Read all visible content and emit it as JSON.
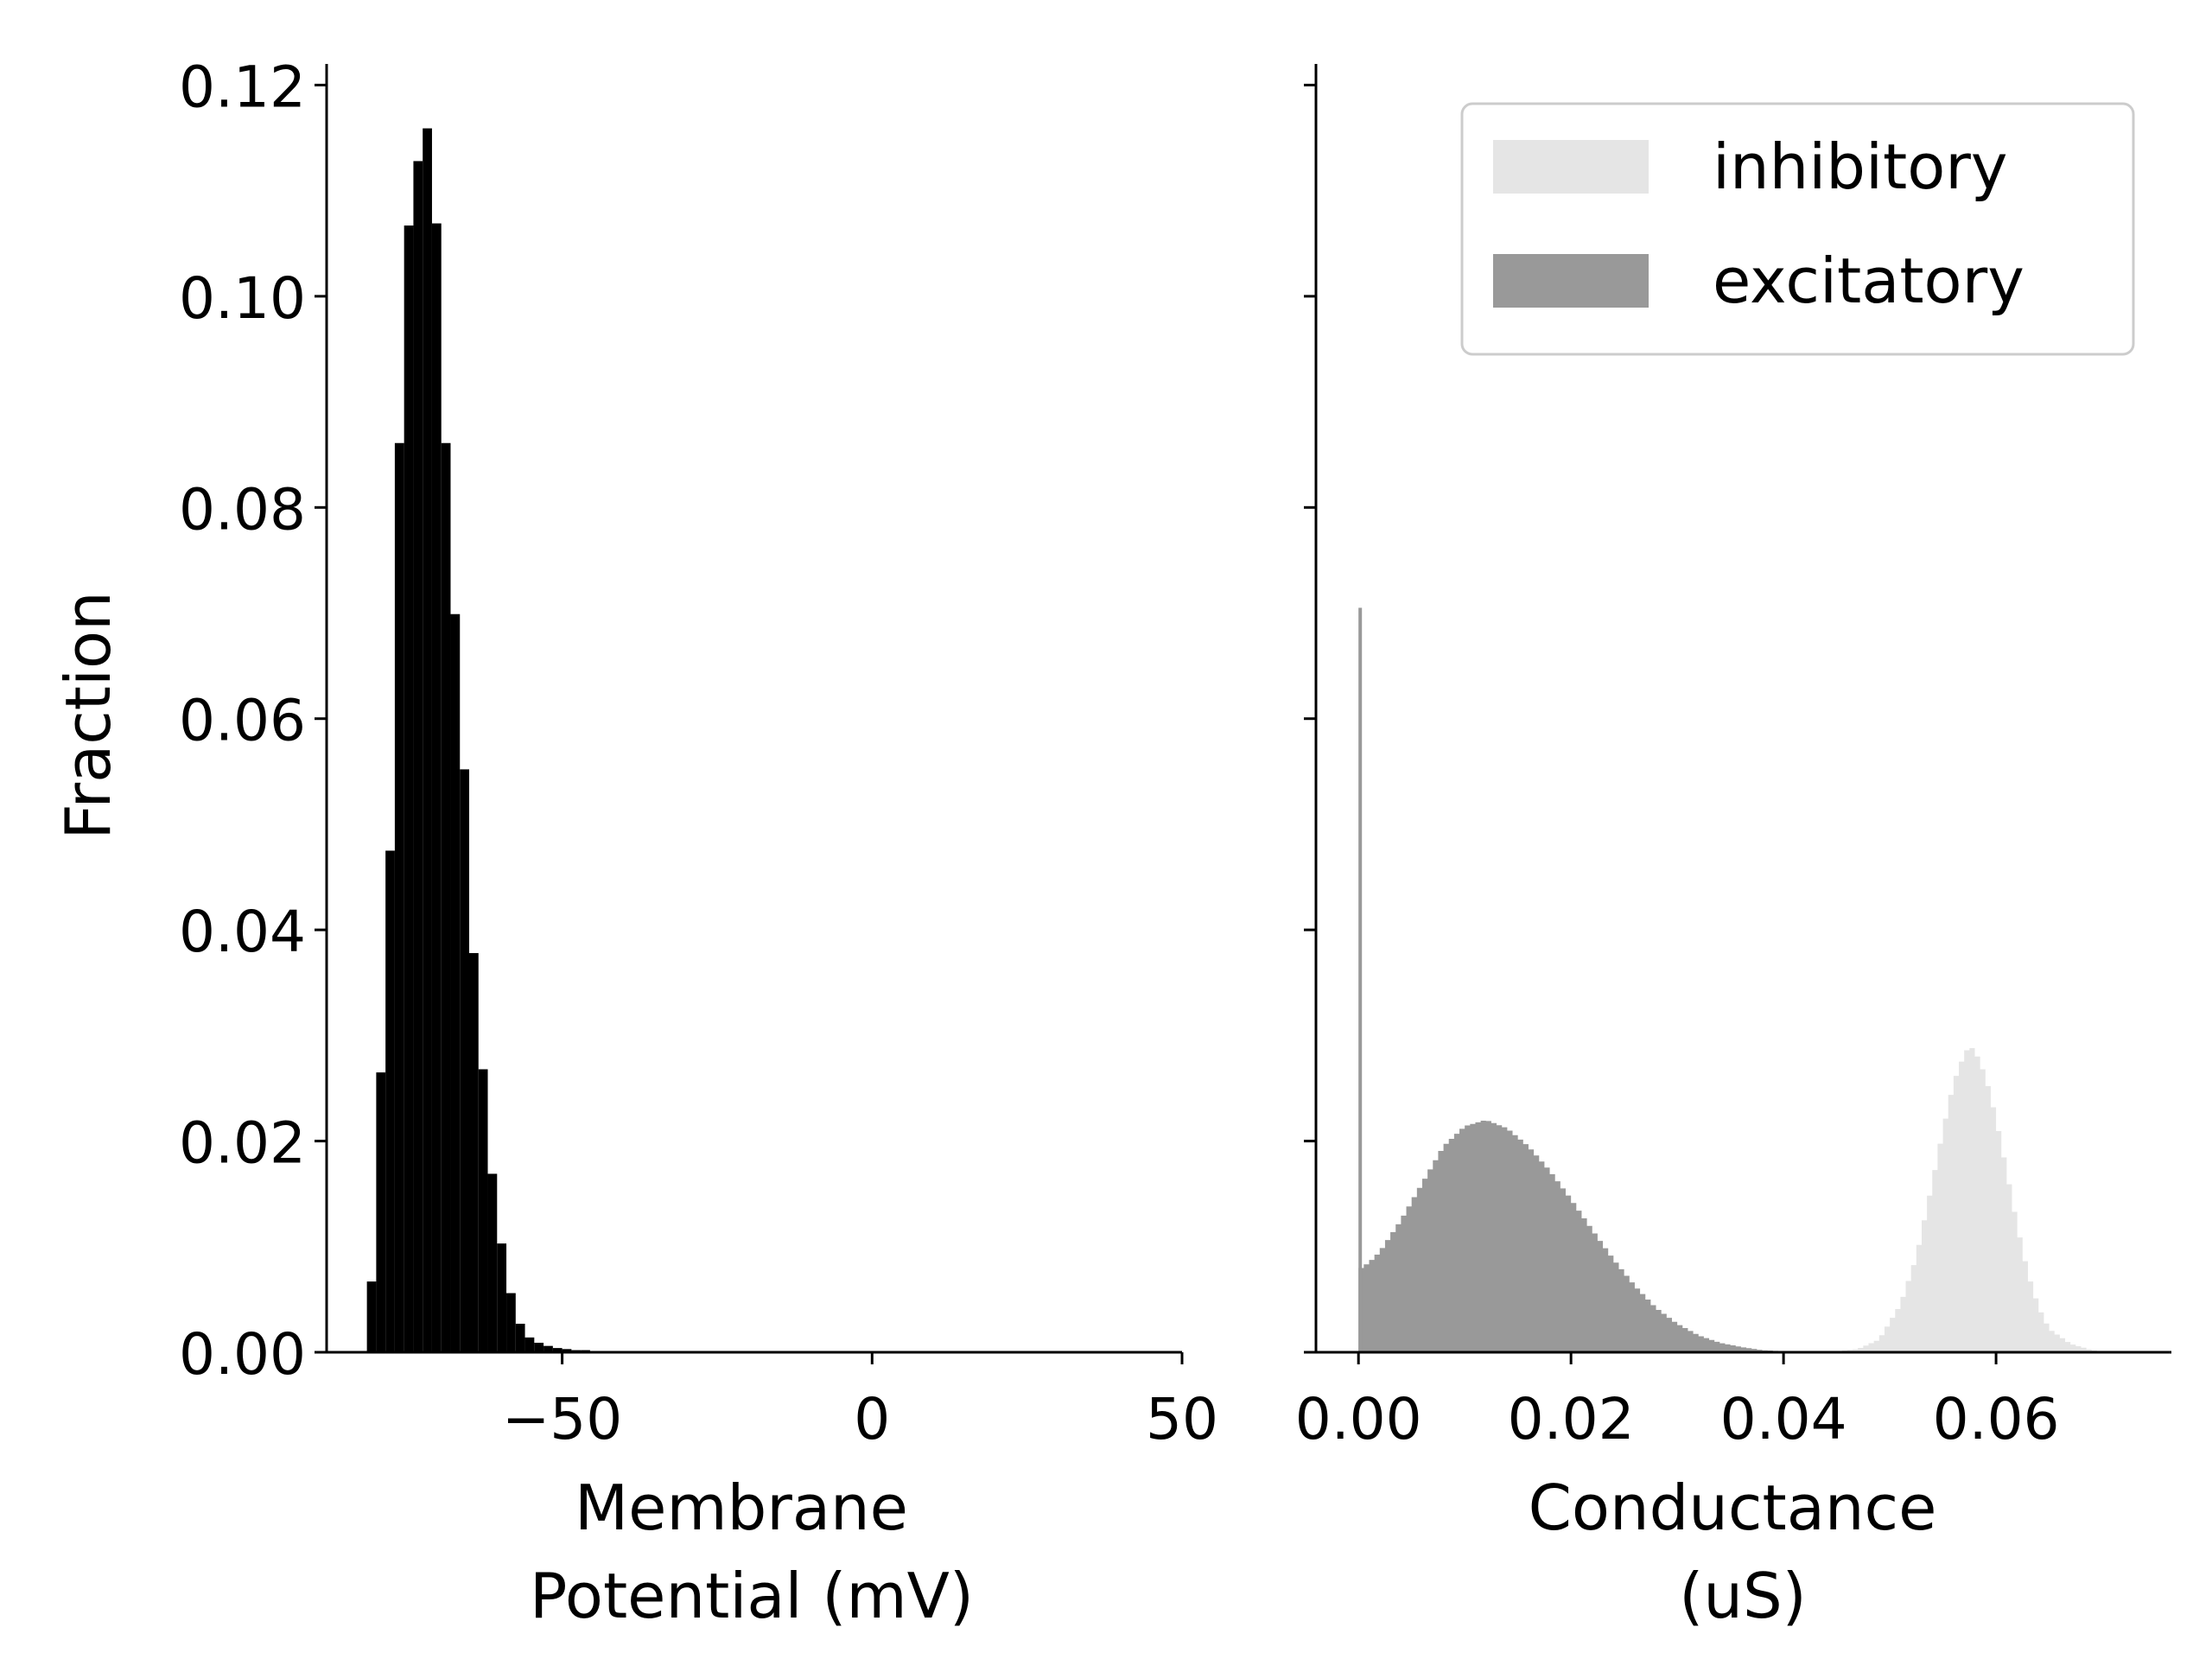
{
  "chart_data": [
    {
      "type": "bar",
      "panel": "left",
      "xlabel": [
        "Membrane",
        "Potential (mV)"
      ],
      "ylabel": "Fraction",
      "xlim": [
        -88,
        50
      ],
      "ylim": [
        0,
        0.122
      ],
      "x_ticks": [
        -50,
        0,
        50
      ],
      "x_tick_labels": [
        "−50",
        "0",
        "50"
      ],
      "y_ticks": [
        0,
        0.02,
        0.04,
        0.06,
        0.08,
        0.1,
        0.12
      ],
      "y_tick_labels": [
        "0.00",
        "0.02",
        "0.04",
        "0.06",
        "0.08",
        "0.10",
        "0.12"
      ],
      "grid": false,
      "series": [
        {
          "color": "#000000",
          "bin_width": 1.5,
          "bin_start": -81.5,
          "values": [
            0.0067,
            0.0265,
            0.0475,
            0.0861,
            0.1067,
            0.1128,
            0.1159,
            0.1069,
            0.0861,
            0.0699,
            0.0552,
            0.0378,
            0.0268,
            0.0169,
            0.0103,
            0.0056,
            0.0027,
            0.0014,
            0.0009,
            0.0006,
            0.0004,
            0.0003,
            0.0002,
            0.0002,
            0.0001,
            0.0001,
            0.0001
          ]
        }
      ]
    },
    {
      "type": "bar",
      "panel": "right",
      "xlabel": [
        "Conductance",
        "(uS)"
      ],
      "xlim": [
        -0.004,
        0.0765
      ],
      "ylim": [
        0,
        0.122
      ],
      "x_ticks": [
        0,
        0.02,
        0.04,
        0.06
      ],
      "x_tick_labels": [
        "0.00",
        "0.02",
        "0.04",
        "0.06"
      ],
      "y_ticks": [
        0,
        0.02,
        0.04,
        0.06,
        0.08,
        0.1,
        0.12
      ],
      "grid": false,
      "legend": {
        "position": "upper right",
        "entries": [
          "inhibitory",
          "excitatory"
        ]
      },
      "series": [
        {
          "name": "inhibitory",
          "color": "#e5e5e5",
          "bin_width": 0.0005,
          "points": [
            [
              0.044,
              0
            ],
            [
              0.047,
              0.0003
            ],
            [
              0.049,
              0.0012
            ],
            [
              0.051,
              0.0045
            ],
            [
              0.0525,
              0.009
            ],
            [
              0.054,
              0.016
            ],
            [
              0.055,
              0.021
            ],
            [
              0.056,
              0.0255
            ],
            [
              0.057,
              0.0282
            ],
            [
              0.0575,
              0.029
            ],
            [
              0.058,
              0.0286
            ],
            [
              0.059,
              0.0262
            ],
            [
              0.06,
              0.0222
            ],
            [
              0.061,
              0.0172
            ],
            [
              0.062,
              0.012
            ],
            [
              0.063,
              0.0075
            ],
            [
              0.064,
              0.0043
            ],
            [
              0.065,
              0.0022
            ],
            [
              0.067,
              0.0008
            ],
            [
              0.069,
              0.0002
            ],
            [
              0.0705,
              0
            ]
          ]
        },
        {
          "name": "excitatory",
          "color": "#999999",
          "bin_width": 0.0005,
          "spike": {
            "x": 0.0,
            "value": 0.0705
          },
          "points": [
            [
              0.0,
              0.0078
            ],
            [
              0.001,
              0.0085
            ],
            [
              0.002,
              0.0095
            ],
            [
              0.004,
              0.0125
            ],
            [
              0.006,
              0.016
            ],
            [
              0.008,
              0.0195
            ],
            [
              0.01,
              0.0214
            ],
            [
              0.012,
              0.022
            ],
            [
              0.014,
              0.0212
            ],
            [
              0.016,
              0.0195
            ],
            [
              0.018,
              0.0172
            ],
            [
              0.02,
              0.0145
            ],
            [
              0.022,
              0.0116
            ],
            [
              0.024,
              0.0088
            ],
            [
              0.026,
              0.0063
            ],
            [
              0.028,
              0.0042
            ],
            [
              0.03,
              0.0027
            ],
            [
              0.032,
              0.0016
            ],
            [
              0.034,
              0.0009
            ],
            [
              0.036,
              0.0005
            ],
            [
              0.038,
              0.0002
            ],
            [
              0.04,
              0.0001
            ],
            [
              0.042,
              0
            ]
          ]
        }
      ]
    }
  ]
}
